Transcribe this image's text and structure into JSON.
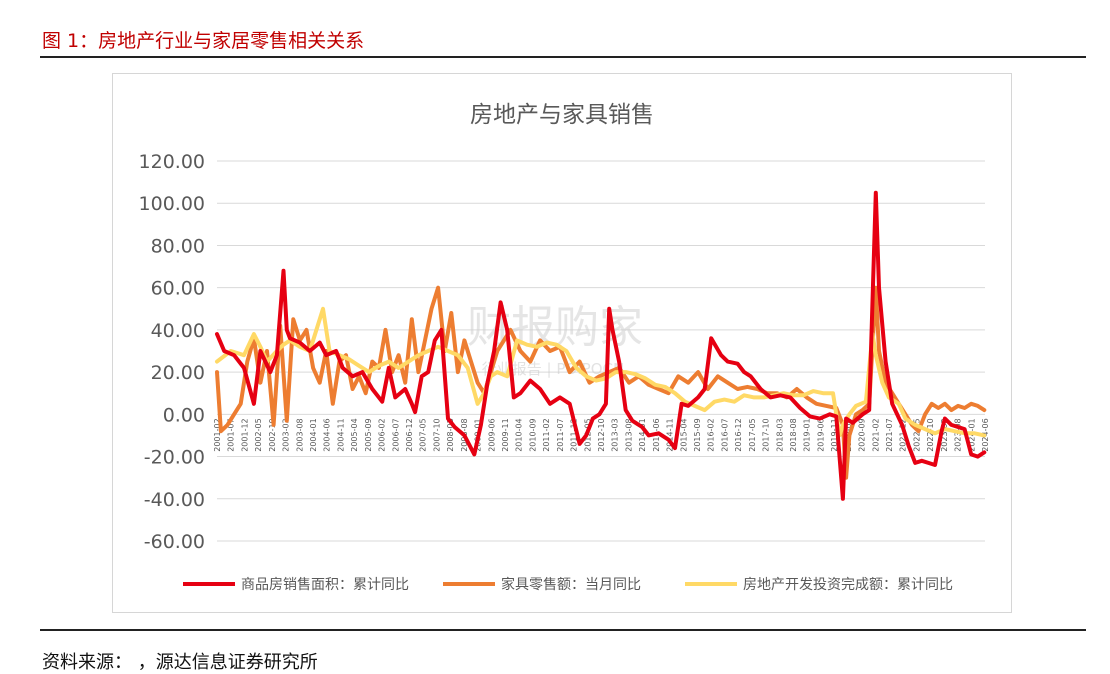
{
  "page": {
    "figure_title": "图 1：房地产行业与家居零售相关关系",
    "source_text": "资料来源：        ，源达信息证券研究所",
    "watermark_main": "财报购家",
    "watermark_sub": "行业报告 | POIPOCN"
  },
  "colors": {
    "title_red": "#c00000",
    "series_red": "#e60012",
    "series_orange": "#ed7d31",
    "series_yellow": "#ffd966",
    "grid": "#d9d9d9",
    "text": "#595959"
  },
  "chart_data": {
    "type": "line",
    "title": "房地产与家具销售",
    "ylim": [
      -60,
      120
    ],
    "y_ticks": [
      "120.00",
      "100.00",
      "80.00",
      "60.00",
      "40.00",
      "20.00",
      "0.00",
      "-20.00",
      "-40.00",
      "-60.00"
    ],
    "x_tick_labels": [
      "2001-02",
      "2001-07",
      "2001-12",
      "2002-05",
      "2002-10",
      "2003-03",
      "2003-08",
      "2004-01",
      "2004-06",
      "2004-11",
      "2005-04",
      "2005-09",
      "2006-02",
      "2006-07",
      "2006-12",
      "2007-05",
      "2007-10",
      "2008-03",
      "2008-08",
      "2009-01",
      "2009-06",
      "2009-11",
      "2010-04",
      "2010-09",
      "2011-02",
      "2011-07",
      "2011-12",
      "2012-05",
      "2012-10",
      "2013-03",
      "2013-08",
      "2014-01",
      "2014-06",
      "2014-11",
      "2015-04",
      "2015-09",
      "2016-02",
      "2016-07",
      "2016-12",
      "2017-05",
      "2017-10",
      "2018-03",
      "2018-08",
      "2019-01",
      "2019-06",
      "2019-11",
      "2020-04",
      "2020-09",
      "2021-02",
      "2021-07",
      "2021-12",
      "2022-05",
      "2022-10",
      "2023-03",
      "2023-08",
      "2024-01",
      "2024-06"
    ],
    "legend": "bottom",
    "grid": true,
    "series": [
      {
        "name": "商品房销售面积：累计同比",
        "color": "#e60012",
        "x": [
          2001.08,
          2001.3,
          2001.6,
          2001.9,
          2002.2,
          2002.4,
          2002.7,
          2002.9,
          2003.1,
          2003.2,
          2003.3,
          2003.6,
          2003.9,
          2004.2,
          2004.4,
          2004.7,
          2004.9,
          2005.2,
          2005.5,
          2005.8,
          2006.1,
          2006.3,
          2006.5,
          2006.8,
          2007.0,
          2007.1,
          2007.3,
          2007.5,
          2007.7,
          2007.9,
          2008.1,
          2008.3,
          2008.6,
          2008.9,
          2009.1,
          2009.3,
          2009.5,
          2009.7,
          2009.9,
          2010.1,
          2010.3,
          2010.6,
          2010.9,
          2011.2,
          2011.5,
          2011.8,
          2012.1,
          2012.3,
          2012.5,
          2012.7,
          2012.9,
          2013.0,
          2013.1,
          2013.3,
          2013.5,
          2013.7,
          2014.0,
          2014.2,
          2014.5,
          2014.8,
          2015.0,
          2015.2,
          2015.4,
          2015.7,
          2015.9,
          2016.1,
          2016.4,
          2016.6,
          2016.9,
          2017.1,
          2017.3,
          2017.6,
          2017.9,
          2018.2,
          2018.5,
          2018.8,
          2019.1,
          2019.4,
          2019.7,
          2019.9,
          2020.1,
          2020.2,
          2020.4,
          2020.7,
          2020.9,
          2021.1,
          2021.2,
          2021.4,
          2021.6,
          2021.9,
          2022.1,
          2022.3,
          2022.5,
          2022.7,
          2022.9,
          2023.1,
          2023.2,
          2023.4,
          2023.6,
          2023.8,
          2024.0,
          2024.2,
          2024.4
        ],
        "values": [
          38,
          30,
          28,
          22,
          5,
          30,
          20,
          28,
          68,
          40,
          36,
          34,
          30,
          34,
          28,
          30,
          22,
          18,
          20,
          12,
          6,
          22,
          8,
          12,
          5,
          1,
          18,
          20,
          35,
          40,
          -2,
          -6,
          -10,
          -19,
          -5,
          15,
          30,
          53,
          40,
          8,
          10,
          16,
          12,
          5,
          8,
          5,
          -14,
          -10,
          -2,
          0,
          5,
          50,
          40,
          25,
          2,
          -3,
          -6,
          -10,
          -9,
          -12,
          -16,
          5,
          4,
          8,
          12,
          36,
          28,
          25,
          24,
          20,
          18,
          12,
          8,
          9,
          8,
          3,
          -1,
          -2,
          0,
          -1,
          -40,
          -2,
          -4,
          0,
          2,
          105,
          60,
          25,
          5,
          -5,
          -15,
          -23,
          -22,
          -23,
          -24,
          -8,
          -2,
          -5,
          -6,
          -7,
          -19,
          -20,
          -18
        ]
      },
      {
        "name": "家具零售额：当月同比",
        "color": "#ed7d31",
        "x": [
          2001.08,
          2001.2,
          2001.4,
          2001.6,
          2001.8,
          2002.0,
          2002.2,
          2002.4,
          2002.6,
          2002.8,
          2003.0,
          2003.2,
          2003.4,
          2003.6,
          2003.8,
          2004.0,
          2004.2,
          2004.4,
          2004.6,
          2004.8,
          2005.0,
          2005.2,
          2005.4,
          2005.6,
          2005.8,
          2006.0,
          2006.2,
          2006.4,
          2006.6,
          2006.8,
          2007.0,
          2007.2,
          2007.4,
          2007.6,
          2007.8,
          2008.0,
          2008.2,
          2008.4,
          2008.6,
          2008.8,
          2009.0,
          2009.2,
          2009.4,
          2009.6,
          2009.8,
          2010.0,
          2010.3,
          2010.6,
          2010.9,
          2011.2,
          2011.5,
          2011.8,
          2012.1,
          2012.4,
          2012.7,
          2013.0,
          2013.3,
          2013.6,
          2013.9,
          2014.2,
          2014.5,
          2014.8,
          2015.1,
          2015.4,
          2015.7,
          2016.0,
          2016.3,
          2016.6,
          2016.9,
          2017.2,
          2017.5,
          2017.8,
          2018.1,
          2018.4,
          2018.7,
          2019.0,
          2019.3,
          2019.6,
          2019.9,
          2020.1,
          2020.2,
          2020.3,
          2020.5,
          2020.7,
          2020.9,
          2021.1,
          2021.2,
          2021.4,
          2021.6,
          2021.8,
          2022.0,
          2022.2,
          2022.4,
          2022.6,
          2022.8,
          2023.0,
          2023.2,
          2023.4,
          2023.6,
          2023.8,
          2024.0,
          2024.2,
          2024.4
        ],
        "values": [
          20,
          -8,
          -5,
          0,
          5,
          25,
          36,
          15,
          30,
          -5,
          42,
          -3,
          45,
          35,
          40,
          22,
          15,
          30,
          5,
          25,
          28,
          12,
          18,
          10,
          25,
          22,
          40,
          20,
          28,
          15,
          45,
          20,
          35,
          50,
          60,
          30,
          48,
          20,
          35,
          25,
          15,
          10,
          20,
          30,
          35,
          40,
          30,
          25,
          35,
          30,
          32,
          20,
          25,
          15,
          18,
          20,
          22,
          15,
          18,
          14,
          12,
          10,
          18,
          15,
          20,
          12,
          18,
          15,
          12,
          13,
          12,
          10,
          10,
          8,
          12,
          8,
          5,
          4,
          3,
          -5,
          -30,
          -10,
          0,
          2,
          5,
          60,
          30,
          15,
          10,
          5,
          0,
          -5,
          -8,
          0,
          5,
          3,
          5,
          2,
          4,
          3,
          5,
          4,
          2
        ]
      },
      {
        "name": "房地产开发投资完成额：累计同比",
        "color": "#ffd966",
        "x": [
          2001.08,
          2001.5,
          2001.9,
          2002.2,
          2002.4,
          2002.6,
          2002.9,
          2003.1,
          2003.3,
          2003.6,
          2003.9,
          2004.1,
          2004.3,
          2004.5,
          2004.8,
          2005.1,
          2005.4,
          2005.7,
          2006.0,
          2006.3,
          2006.6,
          2006.9,
          2007.2,
          2007.5,
          2007.8,
          2008.1,
          2008.4,
          2008.7,
          2009.0,
          2009.2,
          2009.4,
          2009.6,
          2009.9,
          2010.2,
          2010.5,
          2010.8,
          2011.1,
          2011.4,
          2011.7,
          2012.0,
          2012.3,
          2012.6,
          2012.9,
          2013.2,
          2013.5,
          2013.8,
          2014.1,
          2014.4,
          2014.7,
          2015.0,
          2015.3,
          2015.6,
          2015.9,
          2016.2,
          2016.5,
          2016.8,
          2017.1,
          2017.4,
          2017.7,
          2018.0,
          2018.3,
          2018.6,
          2018.9,
          2019.2,
          2019.5,
          2019.8,
          2020.0,
          2020.1,
          2020.3,
          2020.5,
          2020.8,
          2021.0,
          2021.1,
          2021.3,
          2021.5,
          2021.8,
          2022.0,
          2022.3,
          2022.6,
          2022.9,
          2023.2,
          2023.5,
          2023.8,
          2024.1,
          2024.4
        ],
        "values": [
          25,
          30,
          28,
          38,
          32,
          25,
          30,
          33,
          35,
          32,
          30,
          40,
          50,
          30,
          28,
          26,
          23,
          20,
          23,
          25,
          22,
          25,
          28,
          30,
          32,
          30,
          28,
          22,
          5,
          10,
          18,
          20,
          18,
          35,
          33,
          32,
          34,
          33,
          30,
          22,
          18,
          16,
          17,
          20,
          20,
          19,
          17,
          14,
          13,
          10,
          6,
          4,
          2,
          6,
          7,
          6,
          9,
          8,
          8,
          9,
          10,
          9,
          9,
          11,
          10,
          10,
          -10,
          -5,
          0,
          4,
          6,
          38,
          28,
          15,
          8,
          5,
          -2,
          -5,
          -7,
          -9,
          -7,
          -8,
          -9,
          -9,
          -10
        ]
      }
    ]
  }
}
